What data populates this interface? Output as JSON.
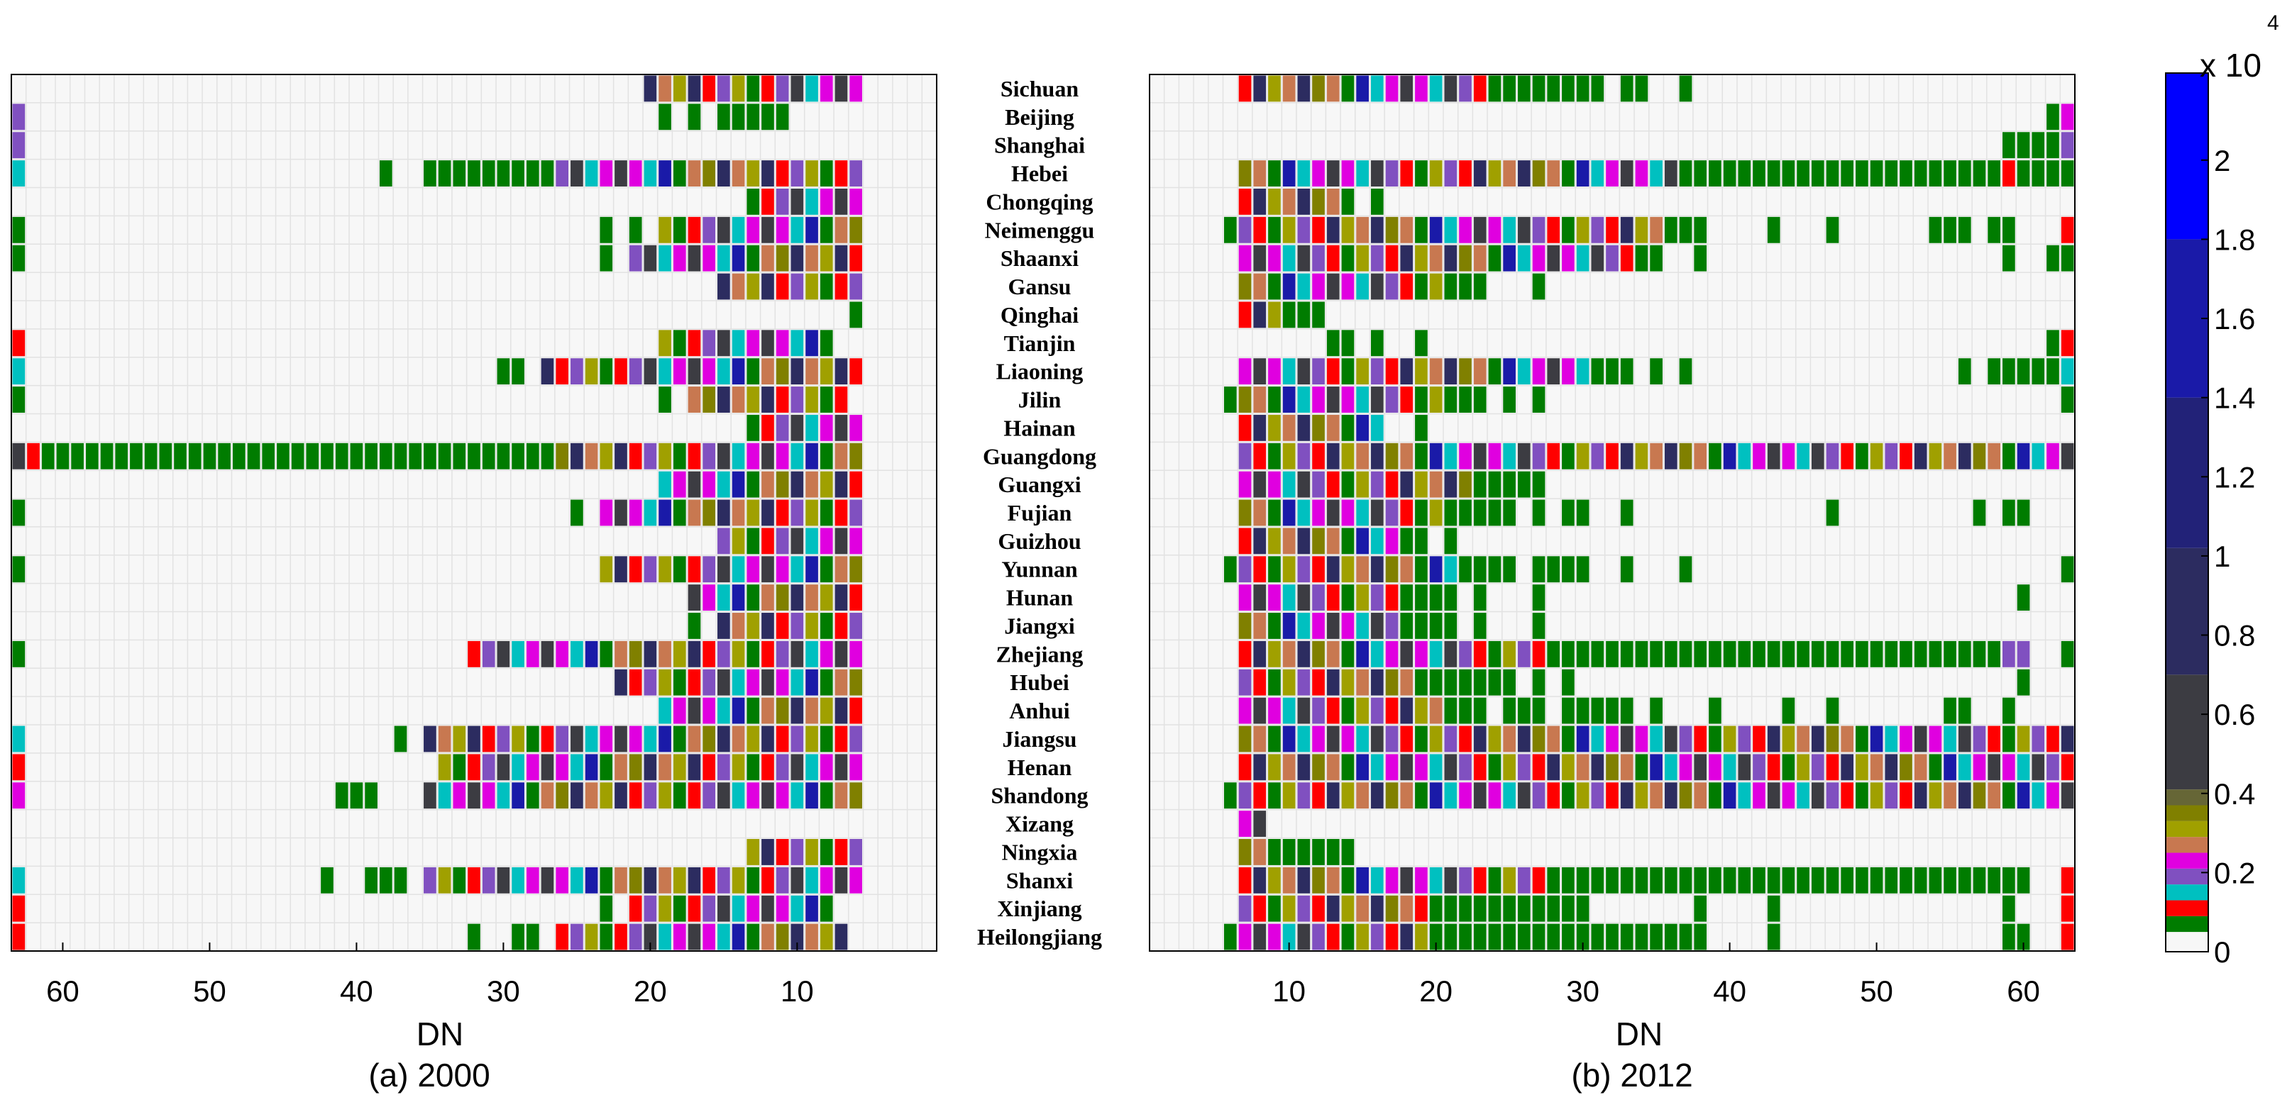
{
  "figure": {
    "panel_a_xlabel": "DN",
    "panel_a_caption": "(a) 2000",
    "panel_b_xlabel": "DN",
    "panel_b_caption": "(b) 2012",
    "colorbar_multiplier": "x 10",
    "colorbar_exponent": "4"
  },
  "chart_data": [
    {
      "type": "heatmap",
      "panel": "a",
      "xlabel": "DN",
      "caption": "(a) 2000",
      "xlim": [
        63,
        1
      ],
      "x_reversed": true,
      "xticks": [
        60,
        50,
        40,
        30,
        20,
        10
      ],
      "rows": [
        "Sichuan",
        "Beijing",
        "Shanghai",
        "Hebei",
        "Chongqing",
        "Neimenggu",
        "Shaanxi",
        "Gansu",
        "Qinghai",
        "Tianjin",
        "Liaoning",
        "Jilin",
        "Hainan",
        "Guangdong",
        "Guangxi",
        "Fujian",
        "Guizhou",
        "Yunnan",
        "Hunan",
        "Jiangxi",
        "Zhejiang",
        "Hubei",
        "Anhui",
        "Jiangsu",
        "Henan",
        "Shandong",
        "Xizang",
        "Ningxia",
        "Shanxi",
        "Xinjiang",
        "Heilongjiang"
      ],
      "cell_rows": [
        [
          [
            20,
            6,
            "rainbow"
          ]
        ],
        [
          [
            63,
            63,
            "purple"
          ],
          [
            19,
            19,
            "G"
          ],
          [
            17,
            17,
            "G"
          ],
          [
            15,
            11,
            "G"
          ]
        ],
        [
          [
            63,
            63,
            "purple"
          ]
        ],
        [
          [
            63,
            63,
            "cyan"
          ],
          [
            38,
            38,
            "G"
          ],
          [
            35,
            27,
            "G"
          ],
          [
            26,
            6,
            "rainbow"
          ]
        ],
        [
          [
            13,
            6,
            "rainbow"
          ]
        ],
        [
          [
            63,
            63,
            "G"
          ],
          [
            23,
            23,
            "G"
          ],
          [
            21,
            21,
            "G"
          ],
          [
            19,
            6,
            "rainbow"
          ]
        ],
        [
          [
            63,
            63,
            "G"
          ],
          [
            23,
            23,
            "G"
          ],
          [
            21,
            6,
            "rainbow"
          ]
        ],
        [
          [
            15,
            6,
            "rainbow"
          ]
        ],
        [
          [
            6,
            6,
            "G"
          ]
        ],
        [
          [
            63,
            63,
            "red"
          ],
          [
            19,
            8,
            "rainbow"
          ]
        ],
        [
          [
            63,
            63,
            "cyan"
          ],
          [
            30,
            29,
            "G"
          ],
          [
            27,
            6,
            "rainbow"
          ]
        ],
        [
          [
            63,
            63,
            "G"
          ],
          [
            19,
            19,
            "G"
          ],
          [
            17,
            7,
            "rainbow"
          ]
        ],
        [
          [
            13,
            6,
            "rainbow"
          ]
        ],
        [
          [
            63,
            63,
            "darkgray"
          ],
          [
            62,
            62,
            "red"
          ],
          [
            61,
            27,
            "G"
          ],
          [
            26,
            6,
            "rainbow"
          ]
        ],
        [
          [
            19,
            6,
            "rainbow"
          ]
        ],
        [
          [
            63,
            63,
            "G"
          ],
          [
            25,
            25,
            "G"
          ],
          [
            23,
            6,
            "rainbow"
          ]
        ],
        [
          [
            15,
            6,
            "rainbow"
          ]
        ],
        [
          [
            63,
            63,
            "G"
          ],
          [
            23,
            6,
            "rainbow"
          ]
        ],
        [
          [
            17,
            6,
            "rainbow"
          ]
        ],
        [
          [
            17,
            17,
            "G"
          ],
          [
            15,
            6,
            "rainbow"
          ]
        ],
        [
          [
            63,
            63,
            "G"
          ],
          [
            32,
            6,
            "rainbow"
          ]
        ],
        [
          [
            22,
            6,
            "rainbow"
          ]
        ],
        [
          [
            19,
            6,
            "rainbow"
          ]
        ],
        [
          [
            63,
            63,
            "cyan"
          ],
          [
            37,
            37,
            "G"
          ],
          [
            35,
            6,
            "rainbow"
          ]
        ],
        [
          [
            63,
            63,
            "red"
          ],
          [
            34,
            6,
            "rainbow"
          ]
        ],
        [
          [
            63,
            63,
            "magenta"
          ],
          [
            41,
            39,
            "G"
          ],
          [
            35,
            6,
            "rainbow"
          ]
        ],
        [],
        [
          [
            13,
            6,
            "rainbow"
          ]
        ],
        [
          [
            63,
            63,
            "cyan"
          ],
          [
            42,
            42,
            "G"
          ],
          [
            39,
            37,
            "G"
          ],
          [
            35,
            6,
            "rainbow"
          ]
        ],
        [
          [
            63,
            63,
            "red"
          ],
          [
            23,
            23,
            "G"
          ],
          [
            21,
            8,
            "rainbow"
          ]
        ],
        [
          [
            63,
            63,
            "red"
          ],
          [
            32,
            32,
            "G"
          ],
          [
            29,
            28,
            "G"
          ],
          [
            26,
            7,
            "rainbow"
          ]
        ]
      ]
    },
    {
      "type": "heatmap",
      "panel": "b",
      "xlabel": "DN",
      "caption": "(b) 2012",
      "xlim": [
        1,
        63
      ],
      "xticks": [
        10,
        20,
        30,
        40,
        50,
        60
      ],
      "rows": [
        "Sichuan",
        "Beijing",
        "Shanghai",
        "Hebei",
        "Chongqing",
        "Neimenggu",
        "Shaanxi",
        "Gansu",
        "Qinghai",
        "Tianjin",
        "Liaoning",
        "Jilin",
        "Hainan",
        "Guangdong",
        "Guangxi",
        "Fujian",
        "Guizhou",
        "Yunnan",
        "Hunan",
        "Jiangxi",
        "Zhejiang",
        "Hubei",
        "Anhui",
        "Jiangsu",
        "Henan",
        "Shandong",
        "Xizang",
        "Ningxia",
        "Shanxi",
        "Xinjiang",
        "Heilongjiang"
      ],
      "cell_rows": [
        [
          [
            7,
            24,
            "rainbow"
          ],
          [
            25,
            31,
            "G"
          ],
          [
            33,
            34,
            "G"
          ],
          [
            37,
            37,
            "G"
          ]
        ],
        [
          [
            62,
            62,
            "G"
          ],
          [
            63,
            63,
            "magenta"
          ]
        ],
        [
          [
            59,
            62,
            "G"
          ],
          [
            63,
            63,
            "purple"
          ]
        ],
        [
          [
            7,
            36,
            "rainbow"
          ],
          [
            37,
            58,
            "G"
          ],
          [
            59,
            59,
            "red"
          ],
          [
            60,
            63,
            "G"
          ]
        ],
        [
          [
            7,
            14,
            "rainbow"
          ],
          [
            16,
            16,
            "G"
          ]
        ],
        [
          [
            6,
            6,
            "G"
          ],
          [
            7,
            35,
            "rainbow"
          ],
          [
            36,
            38,
            "G"
          ],
          [
            43,
            43,
            "G"
          ],
          [
            47,
            47,
            "G"
          ],
          [
            54,
            56,
            "G"
          ],
          [
            58,
            59,
            "G"
          ],
          [
            63,
            63,
            "red"
          ]
        ],
        [
          [
            7,
            33,
            "rainbow"
          ],
          [
            34,
            35,
            "G"
          ],
          [
            38,
            38,
            "G"
          ],
          [
            59,
            59,
            "G"
          ],
          [
            62,
            63,
            "G"
          ]
        ],
        [
          [
            7,
            20,
            "rainbow"
          ],
          [
            21,
            23,
            "G"
          ],
          [
            27,
            27,
            "G"
          ]
        ],
        [
          [
            7,
            9,
            "rainbow"
          ],
          [
            10,
            12,
            "G"
          ]
        ],
        [
          [
            13,
            14,
            "G"
          ],
          [
            16,
            16,
            "G"
          ],
          [
            19,
            19,
            "G"
          ],
          [
            62,
            62,
            "G"
          ],
          [
            63,
            63,
            "red"
          ]
        ],
        [
          [
            7,
            30,
            "rainbow"
          ],
          [
            31,
            33,
            "G"
          ],
          [
            35,
            35,
            "G"
          ],
          [
            37,
            37,
            "G"
          ],
          [
            56,
            56,
            "G"
          ],
          [
            58,
            62,
            "G"
          ],
          [
            63,
            63,
            "cyan"
          ]
        ],
        [
          [
            6,
            6,
            "G"
          ],
          [
            7,
            20,
            "rainbow"
          ],
          [
            21,
            23,
            "G"
          ],
          [
            25,
            25,
            "G"
          ],
          [
            27,
            27,
            "G"
          ],
          [
            63,
            63,
            "G"
          ]
        ],
        [
          [
            7,
            16,
            "rainbow"
          ],
          [
            19,
            19,
            "G"
          ]
        ],
        [
          [
            7,
            63,
            "rainbow"
          ]
        ],
        [
          [
            7,
            22,
            "rainbow"
          ],
          [
            23,
            27,
            "G"
          ]
        ],
        [
          [
            7,
            20,
            "rainbow"
          ],
          [
            21,
            25,
            "G"
          ],
          [
            27,
            27,
            "G"
          ],
          [
            29,
            30,
            "G"
          ],
          [
            33,
            33,
            "G"
          ],
          [
            47,
            47,
            "G"
          ],
          [
            57,
            57,
            "G"
          ],
          [
            59,
            60,
            "G"
          ]
        ],
        [
          [
            7,
            17,
            "rainbow"
          ],
          [
            18,
            19,
            "G"
          ],
          [
            21,
            21,
            "G"
          ]
        ],
        [
          [
            6,
            6,
            "G"
          ],
          [
            7,
            21,
            "rainbow"
          ],
          [
            22,
            25,
            "G"
          ],
          [
            27,
            30,
            "G"
          ],
          [
            33,
            33,
            "G"
          ],
          [
            37,
            37,
            "G"
          ],
          [
            63,
            63,
            "G"
          ]
        ],
        [
          [
            7,
            17,
            "rainbow"
          ],
          [
            18,
            21,
            "G"
          ],
          [
            23,
            23,
            "G"
          ],
          [
            27,
            27,
            "G"
          ],
          [
            60,
            60,
            "G"
          ]
        ],
        [
          [
            7,
            17,
            "rainbow"
          ],
          [
            18,
            21,
            "G"
          ],
          [
            23,
            23,
            "G"
          ],
          [
            27,
            27,
            "G"
          ]
        ],
        [
          [
            7,
            27,
            "rainbow"
          ],
          [
            28,
            58,
            "G"
          ],
          [
            59,
            60,
            "purple"
          ],
          [
            63,
            63,
            "G"
          ]
        ],
        [
          [
            7,
            19,
            "rainbow"
          ],
          [
            20,
            25,
            "G"
          ],
          [
            27,
            27,
            "G"
          ],
          [
            29,
            29,
            "G"
          ],
          [
            60,
            60,
            "G"
          ]
        ],
        [
          [
            7,
            20,
            "rainbow"
          ],
          [
            21,
            23,
            "G"
          ],
          [
            25,
            27,
            "G"
          ],
          [
            29,
            33,
            "G"
          ],
          [
            35,
            35,
            "G"
          ],
          [
            39,
            39,
            "G"
          ],
          [
            44,
            44,
            "G"
          ],
          [
            47,
            47,
            "G"
          ],
          [
            55,
            56,
            "G"
          ],
          [
            59,
            59,
            "G"
          ]
        ],
        [
          [
            7,
            63,
            "rainbow"
          ]
        ],
        [
          [
            7,
            63,
            "rainbow"
          ]
        ],
        [
          [
            6,
            6,
            "G"
          ],
          [
            7,
            63,
            "rainbow"
          ]
        ],
        [
          [
            7,
            8,
            "rainbow"
          ]
        ],
        [
          [
            7,
            9,
            "rainbow"
          ],
          [
            10,
            14,
            "G"
          ]
        ],
        [
          [
            7,
            27,
            "rainbow"
          ],
          [
            28,
            60,
            "G"
          ],
          [
            63,
            63,
            "red"
          ]
        ],
        [
          [
            7,
            18,
            "rainbow"
          ],
          [
            19,
            19,
            "red"
          ],
          [
            20,
            30,
            "G"
          ],
          [
            38,
            38,
            "G"
          ],
          [
            43,
            43,
            "G"
          ],
          [
            59,
            59,
            "G"
          ],
          [
            63,
            63,
            "red"
          ]
        ],
        [
          [
            6,
            6,
            "G"
          ],
          [
            7,
            19,
            "rainbow"
          ],
          [
            20,
            38,
            "G"
          ],
          [
            43,
            43,
            "G"
          ],
          [
            59,
            60,
            "G"
          ],
          [
            63,
            63,
            "red"
          ]
        ]
      ]
    },
    {
      "type": "colorbar",
      "multiplier": "x 10",
      "exponent": "4",
      "ticks": [
        "0",
        "0.2",
        "0.4",
        "0.6",
        "0.8",
        "1",
        "1.2",
        "1.4",
        "1.6",
        "1.8",
        "2"
      ],
      "tick_values": [
        0,
        0.2,
        0.4,
        0.6,
        0.8,
        1,
        1.2,
        1.4,
        1.6,
        1.8,
        2
      ],
      "max": 2.22,
      "segments": [
        {
          "to": 0.05,
          "color": "#f7f7f7"
        },
        {
          "to": 0.09,
          "color": "#007c00"
        },
        {
          "to": 0.13,
          "color": "#ff0000"
        },
        {
          "to": 0.17,
          "color": "#00c0c0"
        },
        {
          "to": 0.21,
          "color": "#8050c0"
        },
        {
          "to": 0.25,
          "color": "#e000e0"
        },
        {
          "to": 0.29,
          "color": "#c87850"
        },
        {
          "to": 0.33,
          "color": "#a0a000"
        },
        {
          "to": 0.37,
          "color": "#808000"
        },
        {
          "to": 0.41,
          "color": "#666636"
        },
        {
          "to": 0.7,
          "color": "#3c3c42"
        },
        {
          "to": 1.02,
          "color": "#2c2c60"
        },
        {
          "to": 1.4,
          "color": "#222278"
        },
        {
          "to": 1.8,
          "color": "#1a1aa8"
        },
        {
          "to": 2.22,
          "color": "#0000ff"
        }
      ]
    }
  ],
  "palette": {
    "G": "#007c00",
    "red": "#ff0000",
    "cyan": "#00c0c0",
    "purple": "#8050c0",
    "magenta": "#e000e0",
    "orange": "#c87850",
    "olive": "#a0a000",
    "darkgray": "#3c3c42",
    "navy": "#2c2c60",
    "blue": "#0000ff",
    "empty": "#f7f7f7",
    "cycle": [
      "#2c2c60",
      "#3c3c42",
      "#a0a000",
      "#808000",
      "#e000e0",
      "#8050c0",
      "#c87850",
      "#00c0c0",
      "#ff0000",
      "#007c00",
      "#3c3c42",
      "#2c2c60",
      "#1a1aa8",
      "#8050c0",
      "#a0a000",
      "#00c0c0",
      "#ff0000",
      "#c87850",
      "#e000e0",
      "#007c00"
    ]
  }
}
